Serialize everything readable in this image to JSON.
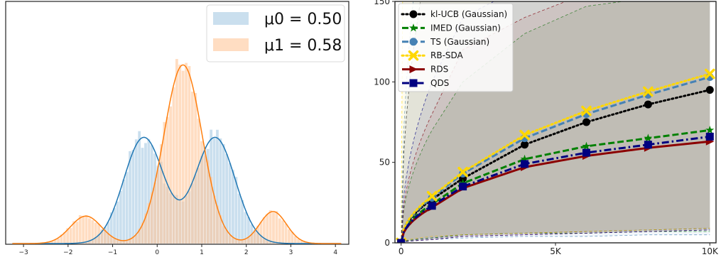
{
  "chart_data": [
    {
      "type": "histogram-kde",
      "title": "",
      "xlabel": "",
      "ylabel": "",
      "xlim": [
        -3.4,
        4.3
      ],
      "x_ticks": [
        "−3",
        "−2",
        "−1",
        "0",
        "1",
        "2",
        "3",
        "4"
      ],
      "x_tick_values": [
        -3,
        -2,
        -1,
        0,
        1,
        2,
        3,
        4
      ],
      "y_ticks": [],
      "legend": {
        "placement": "top-right"
      },
      "series": [
        {
          "name": "μ0 = 0.50",
          "legend_label": "$\\mu_0 = 0.50$",
          "color": "#1f77b4",
          "fill_color": "#a6c9e2",
          "components": [
            {
              "mean": -0.3,
              "sd": 0.45,
              "weight": 0.5
            },
            {
              "mean": 1.3,
              "sd": 0.45,
              "weight": 0.5
            }
          ],
          "kde_peak": 0.44
        },
        {
          "name": "μ1 = 0.58",
          "legend_label": "$\\mu_1 = 0.58$",
          "color": "#ff7f0e",
          "fill_color": "#ffc79a",
          "components": [
            {
              "mean": -1.6,
              "sd": 0.35,
              "weight": 0.1
            },
            {
              "mean": 0.58,
              "sd": 0.43,
              "weight": 0.8
            },
            {
              "mean": 2.6,
              "sd": 0.3,
              "weight": 0.1
            }
          ],
          "kde_peak": 0.74
        }
      ]
    },
    {
      "type": "line",
      "title": "",
      "xlabel": "",
      "ylabel": "",
      "xlim": [
        -200,
        10200
      ],
      "ylim": [
        0,
        150
      ],
      "x_ticks": [
        "0",
        "5K",
        "10K"
      ],
      "x_tick_values": [
        0,
        5000,
        10000
      ],
      "y_ticks": [
        "0",
        "50",
        "100",
        "150"
      ],
      "y_tick_values": [
        0,
        50,
        100,
        150
      ],
      "legend": {
        "placement": "top-left"
      },
      "x": [
        0,
        1000,
        2000,
        4000,
        6000,
        8000,
        10000
      ],
      "series": [
        {
          "name": "kl-UCB (Gaussian)",
          "color": "#000000",
          "style": "dotted",
          "marker": "circle",
          "values": [
            0,
            27,
            40,
            61,
            75,
            86,
            95
          ],
          "upper_band": [
            0,
            190,
            290,
            330,
            370,
            410,
            450
          ],
          "lower_band": [
            0,
            3,
            5,
            6,
            7,
            8,
            9
          ]
        },
        {
          "name": "IMED (Gaussian)",
          "color": "#008000",
          "style": "dashed",
          "marker": "star",
          "values": [
            0,
            24,
            37,
            52,
            60,
            65,
            70
          ],
          "upper_band": [
            0,
            70,
            100,
            130,
            147,
            152,
            158
          ],
          "lower_band": [
            0,
            3,
            5,
            6,
            6,
            7,
            7
          ]
        },
        {
          "name": "TS (Gaussian)",
          "color": "#4682b4",
          "style": "dashed",
          "marker": "circle",
          "values": [
            0,
            28,
            43,
            65,
            80,
            92,
            103
          ],
          "upper_band": [
            0,
            240,
            360,
            420,
            470,
            520,
            570
          ],
          "lower_band": [
            0,
            2,
            3,
            4,
            4,
            5,
            5
          ]
        },
        {
          "name": "RB-SDA",
          "color": "#ffd700",
          "style": "dotted",
          "marker": "x",
          "values": [
            0,
            29,
            44,
            67,
            82,
            94,
            105
          ],
          "upper_band": [
            0,
            900,
            1100,
            1200,
            1300,
            1400,
            1500
          ],
          "lower_band": [
            0,
            4,
            5,
            6,
            7,
            8,
            9
          ]
        },
        {
          "name": "RDS",
          "color": "#8b0000",
          "style": "solid",
          "marker": "triangle-right",
          "values": [
            0,
            22,
            34,
            47,
            54,
            59,
            63
          ],
          "upper_band": [
            0,
            80,
            120,
            140,
            155,
            165,
            175
          ],
          "lower_band": [
            0,
            2,
            4,
            5,
            6,
            7,
            8
          ]
        },
        {
          "name": "QDS",
          "color": "#000080",
          "style": "dashdot",
          "marker": "square",
          "values": [
            0,
            23,
            35,
            49,
            56,
            61,
            66
          ],
          "upper_band": [
            0,
            100,
            140,
            160,
            175,
            185,
            195
          ],
          "lower_band": [
            0,
            2,
            4,
            5,
            6,
            7,
            8
          ]
        }
      ]
    }
  ]
}
